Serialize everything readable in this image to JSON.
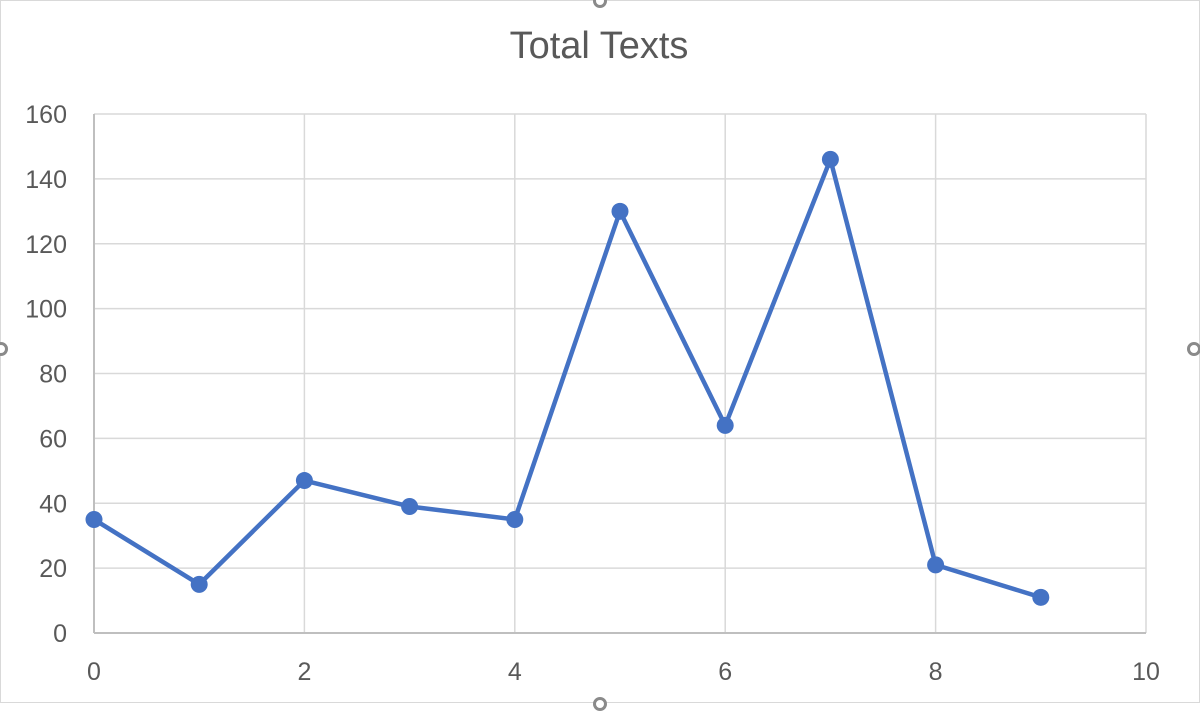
{
  "chart_data": {
    "type": "scatter",
    "title": "Total Texts",
    "xlabel": "",
    "ylabel": "",
    "x": [
      0,
      1,
      2,
      3,
      4,
      5,
      6,
      7,
      8,
      9
    ],
    "series": [
      {
        "values": [
          35,
          15,
          47,
          39,
          35,
          130,
          64,
          146,
          21,
          11
        ]
      }
    ],
    "xlim": [
      0,
      10
    ],
    "ylim": [
      0,
      160
    ],
    "x_ticks": [
      0,
      2,
      4,
      6,
      8,
      10
    ],
    "y_ticks": [
      0,
      20,
      40,
      60,
      80,
      100,
      120,
      140,
      160
    ],
    "lines_connected": true,
    "markers": true,
    "grid": true,
    "legend": "none"
  },
  "colors": {
    "series": "#4472c4",
    "grid": "#d9d9d9",
    "axis": "#bfbfbf",
    "text": "#595959"
  }
}
